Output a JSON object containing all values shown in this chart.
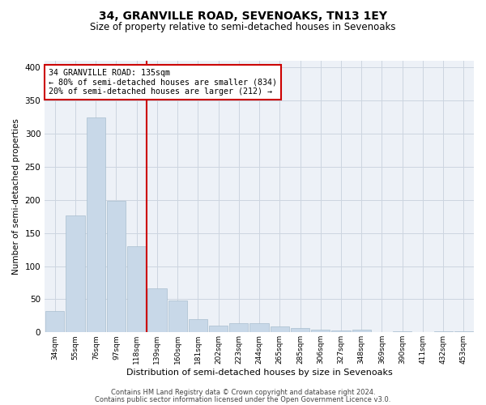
{
  "title1": "34, GRANVILLE ROAD, SEVENOAKS, TN13 1EY",
  "title2": "Size of property relative to semi-detached houses in Sevenoaks",
  "xlabel": "Distribution of semi-detached houses by size in Sevenoaks",
  "ylabel": "Number of semi-detached properties",
  "categories": [
    "34sqm",
    "55sqm",
    "76sqm",
    "97sqm",
    "118sqm",
    "139sqm",
    "160sqm",
    "181sqm",
    "202sqm",
    "223sqm",
    "244sqm",
    "265sqm",
    "285sqm",
    "306sqm",
    "327sqm",
    "348sqm",
    "369sqm",
    "390sqm",
    "411sqm",
    "432sqm",
    "453sqm"
  ],
  "values": [
    32,
    176,
    325,
    199,
    130,
    67,
    48,
    20,
    10,
    14,
    14,
    9,
    7,
    4,
    3,
    4,
    0,
    1,
    0,
    2,
    2
  ],
  "bar_color": "#c8d8e8",
  "bar_edge_color": "#a8bece",
  "vline_color": "#cc0000",
  "annotation_text": "34 GRANVILLE ROAD: 135sqm\n← 80% of semi-detached houses are smaller (834)\n20% of semi-detached houses are larger (212) →",
  "annotation_box_color": "#ffffff",
  "annotation_box_edge": "#cc0000",
  "ylim": [
    0,
    410
  ],
  "yticks": [
    0,
    50,
    100,
    150,
    200,
    250,
    300,
    350,
    400
  ],
  "footer1": "Contains HM Land Registry data © Crown copyright and database right 2024.",
  "footer2": "Contains public sector information licensed under the Open Government Licence v3.0.",
  "title1_fontsize": 10,
  "title2_fontsize": 8.5,
  "grid_color": "#ccd5e0",
  "background_color": "#edf1f7"
}
